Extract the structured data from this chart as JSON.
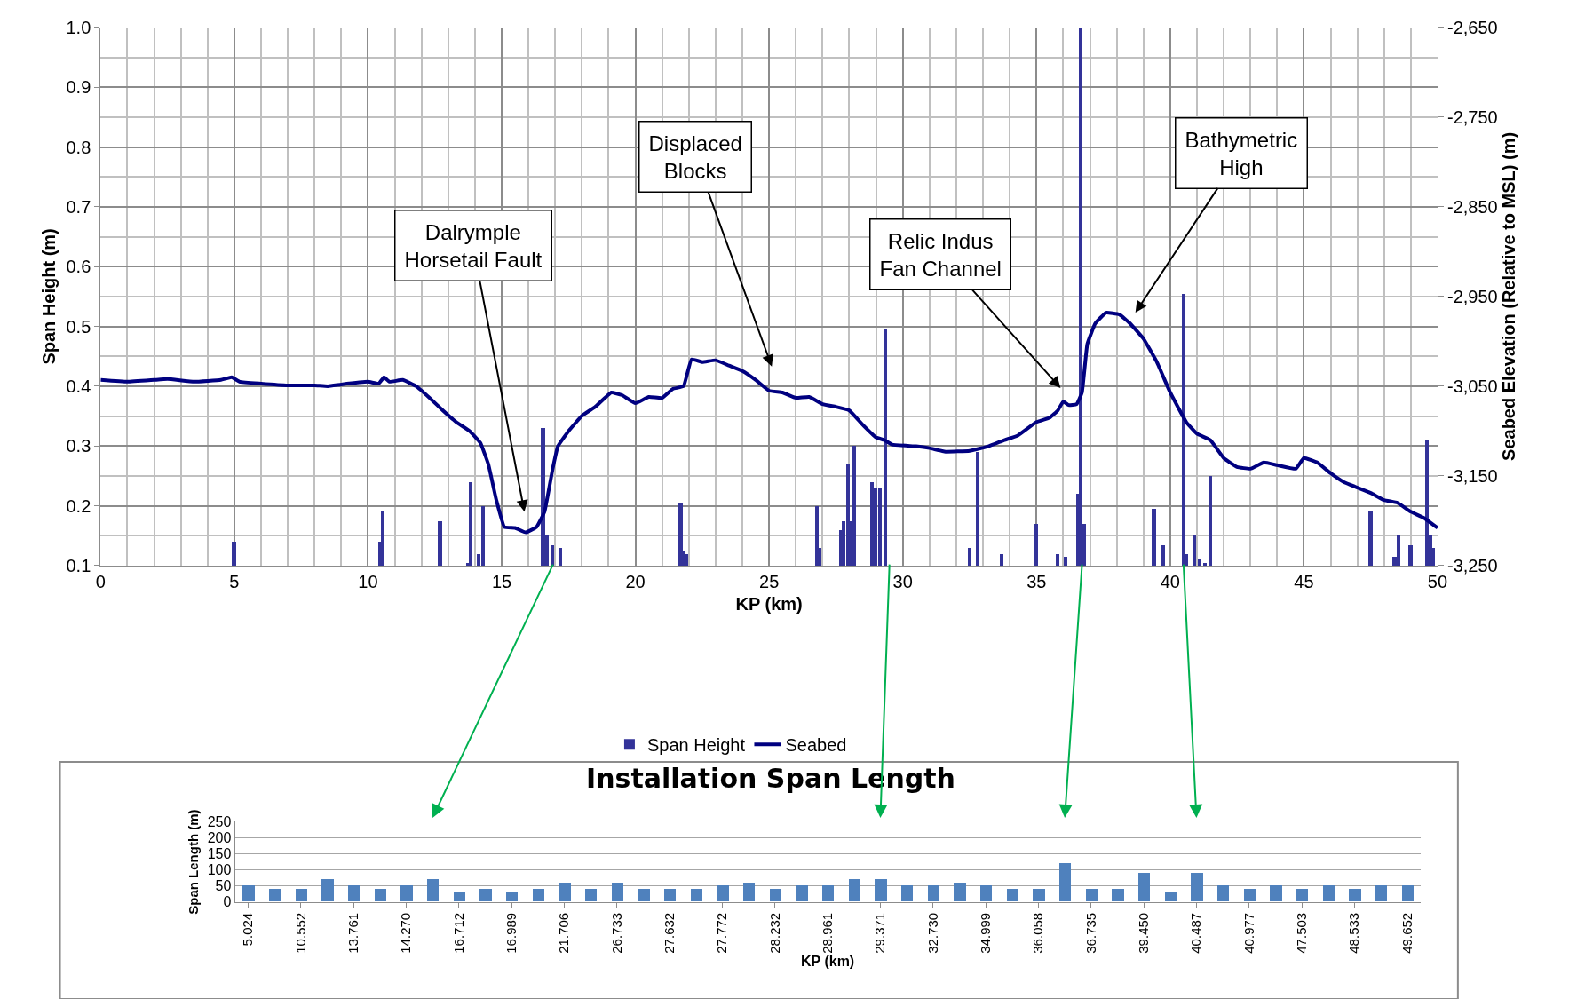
{
  "chart_data": [
    {
      "type": "bar",
      "xlabel": "KP (km)",
      "ylabel": "Span Height (m)",
      "y2label": "Seabed Elevation (Relative to MSL) (m)",
      "xlim": [
        0,
        50
      ],
      "xticks": [
        0,
        5,
        10,
        15,
        20,
        25,
        30,
        35,
        40,
        45,
        50
      ],
      "ylim": [
        0.1,
        1.0
      ],
      "yticks": [
        {
          "value": 0.1,
          "label": "0.1"
        },
        {
          "value": 0.2,
          "label": "0.2"
        },
        {
          "value": 0.3,
          "label": "0.3"
        },
        {
          "value": 0.4,
          "label": "0.4"
        },
        {
          "value": 0.5,
          "label": "0.5"
        },
        {
          "value": 0.6,
          "label": "0.6"
        },
        {
          "value": 0.7,
          "label": "0.7"
        },
        {
          "value": 0.8,
          "label": "0.8"
        },
        {
          "value": 0.9,
          "label": "0.9"
        },
        {
          "value": 1.0,
          "label": "1.0"
        }
      ],
      "y2lim": [
        -3250,
        -2650
      ],
      "y2ticks": [
        {
          "value": -3250,
          "label": "-3,250"
        },
        {
          "value": -3150,
          "label": "-3,150"
        },
        {
          "value": -3050,
          "label": "-3,050"
        },
        {
          "value": -2950,
          "label": "-2,950"
        },
        {
          "value": -2850,
          "label": "-2,850"
        },
        {
          "value": -2750,
          "label": "-2,750"
        },
        {
          "value": -2650,
          "label": "-2,650"
        }
      ],
      "grid": true,
      "legend": "bottom",
      "series": [
        {
          "name": "Span Height",
          "type": "bar",
          "color": "#333399",
          "x": [
            5.0,
            10.45,
            10.55,
            12.7,
            13.75,
            13.85,
            14.15,
            14.3,
            16.55,
            16.7,
            16.9,
            17.2,
            21.7,
            21.8,
            21.9,
            26.8,
            26.9,
            27.7,
            27.8,
            27.95,
            28.1,
            28.2,
            28.85,
            29.0,
            29.15,
            29.35,
            32.5,
            32.8,
            33.7,
            35.0,
            35.8,
            36.1,
            36.55,
            36.65,
            36.8,
            39.2,
            39.4,
            39.75,
            40.5,
            40.6,
            40.9,
            41.1,
            41.3,
            41.5,
            47.5,
            48.4,
            48.55,
            49.0,
            49.6,
            49.75,
            49.85
          ],
          "values": [
            0.14,
            0.14,
            0.19,
            0.175,
            0.105,
            0.24,
            0.12,
            0.2,
            0.33,
            0.15,
            0.135,
            0.13,
            0.205,
            0.125,
            0.12,
            0.2,
            0.13,
            0.16,
            0.175,
            0.27,
            0.175,
            0.3,
            0.24,
            0.23,
            0.23,
            0.495,
            0.13,
            0.29,
            0.12,
            0.17,
            0.12,
            0.115,
            0.22,
            1.0,
            0.17,
            0.1,
            0.195,
            0.135,
            0.555,
            0.12,
            0.15,
            0.11,
            0.105,
            0.25,
            0.19,
            0.115,
            0.15,
            0.135,
            0.31,
            0.15,
            0.13
          ]
        },
        {
          "name": "Seabed",
          "type": "line",
          "axis": "y2",
          "color": "#000080",
          "x": [
            0,
            1,
            2,
            2.5,
            3.5,
            4.5,
            4.9,
            5.2,
            6,
            7,
            8,
            8.5,
            9,
            10,
            10.4,
            10.6,
            10.8,
            11.3,
            11.8,
            12.3,
            12.8,
            13.3,
            13.8,
            14.2,
            14.5,
            14.8,
            15.1,
            15.5,
            15.9,
            16.3,
            16.6,
            16.9,
            17.1,
            17.5,
            18,
            18.5,
            19.1,
            19.5,
            20,
            20.5,
            21,
            21.4,
            21.8,
            22.1,
            22.5,
            23,
            23.5,
            24,
            24.5,
            25,
            25.5,
            26,
            26.5,
            27,
            27.5,
            28,
            28.5,
            29,
            29.3,
            29.6,
            30.5,
            31,
            31.6,
            32.5,
            33.2,
            33.8,
            34.3,
            35,
            35.5,
            35.8,
            36,
            36.2,
            36.5,
            36.7,
            36.9,
            37.2,
            37.6,
            38.1,
            38.5,
            39,
            39.5,
            40,
            40.6,
            41,
            41.5,
            42,
            42.5,
            43,
            43.5,
            44,
            44.7,
            45,
            45.5,
            46,
            46.5,
            47,
            47.5,
            48,
            48.5,
            49,
            49.5,
            50
          ],
          "values": [
            -3043,
            -3045,
            -3043,
            -3042,
            -3045,
            -3043,
            -3040,
            -3045,
            -3047,
            -3049,
            -3049,
            -3050,
            -3048,
            -3045,
            -3047,
            -3040,
            -3045,
            -3043,
            -3050,
            -3063,
            -3077,
            -3090,
            -3100,
            -3113,
            -3137,
            -3177,
            -3207,
            -3208,
            -3213,
            -3207,
            -3190,
            -3143,
            -3117,
            -3100,
            -3083,
            -3073,
            -3057,
            -3060,
            -3069,
            -3062,
            -3063,
            -3053,
            -3050,
            -3020,
            -3023,
            -3021,
            -3027,
            -3033,
            -3043,
            -3055,
            -3057,
            -3063,
            -3062,
            -3070,
            -3073,
            -3077,
            -3093,
            -3107,
            -3110,
            -3115,
            -3117,
            -3119,
            -3123,
            -3122,
            -3117,
            -3110,
            -3105,
            -3090,
            -3085,
            -3077,
            -3067,
            -3071,
            -3070,
            -3057,
            -3003,
            -2980,
            -2968,
            -2970,
            -2980,
            -2997,
            -3023,
            -3057,
            -3090,
            -3103,
            -3110,
            -3130,
            -3140,
            -3142,
            -3135,
            -3138,
            -3142,
            -3130,
            -3135,
            -3147,
            -3157,
            -3163,
            -3169,
            -3177,
            -3180,
            -3190,
            -3197,
            -3208
          ]
        }
      ],
      "annotations": [
        "Dalrymple\nHorsetail Fault",
        "Displaced\nBlocks",
        "Relic Indus\nFan Channel",
        "Bathymetric\nHigh"
      ]
    },
    {
      "type": "bar",
      "title": "Installation Span Length",
      "xlabel": "KP (km)",
      "ylabel": "Span Length (m)",
      "color": "#4f81bd",
      "ylim": [
        0,
        250
      ],
      "yticks": [
        0,
        50,
        100,
        150,
        200,
        250
      ],
      "grid": "y",
      "categories": [
        "5.024",
        null,
        "10.552",
        null,
        "13.761",
        null,
        "14.270",
        null,
        "16.712",
        null,
        "16.989",
        null,
        "21.706",
        null,
        "26.733",
        null,
        "27.632",
        null,
        "27.772",
        null,
        "28.232",
        null,
        "28.961",
        null,
        "29.371",
        null,
        "32.730",
        null,
        "34.999",
        null,
        "36.058",
        null,
        "36.735",
        null,
        "39.450",
        null,
        "40.487",
        null,
        "40.977",
        null,
        "47.503",
        null,
        "48.533",
        null,
        "49.652"
      ],
      "values": [
        50,
        40,
        40,
        70,
        50,
        40,
        50,
        70,
        30,
        40,
        30,
        40,
        60,
        40,
        60,
        40,
        40,
        40,
        50,
        60,
        40,
        50,
        50,
        70,
        70,
        50,
        50,
        60,
        50,
        40,
        40,
        120,
        40,
        40,
        90,
        30,
        90,
        50,
        40,
        50,
        40,
        50,
        40,
        50,
        50
      ]
    }
  ]
}
